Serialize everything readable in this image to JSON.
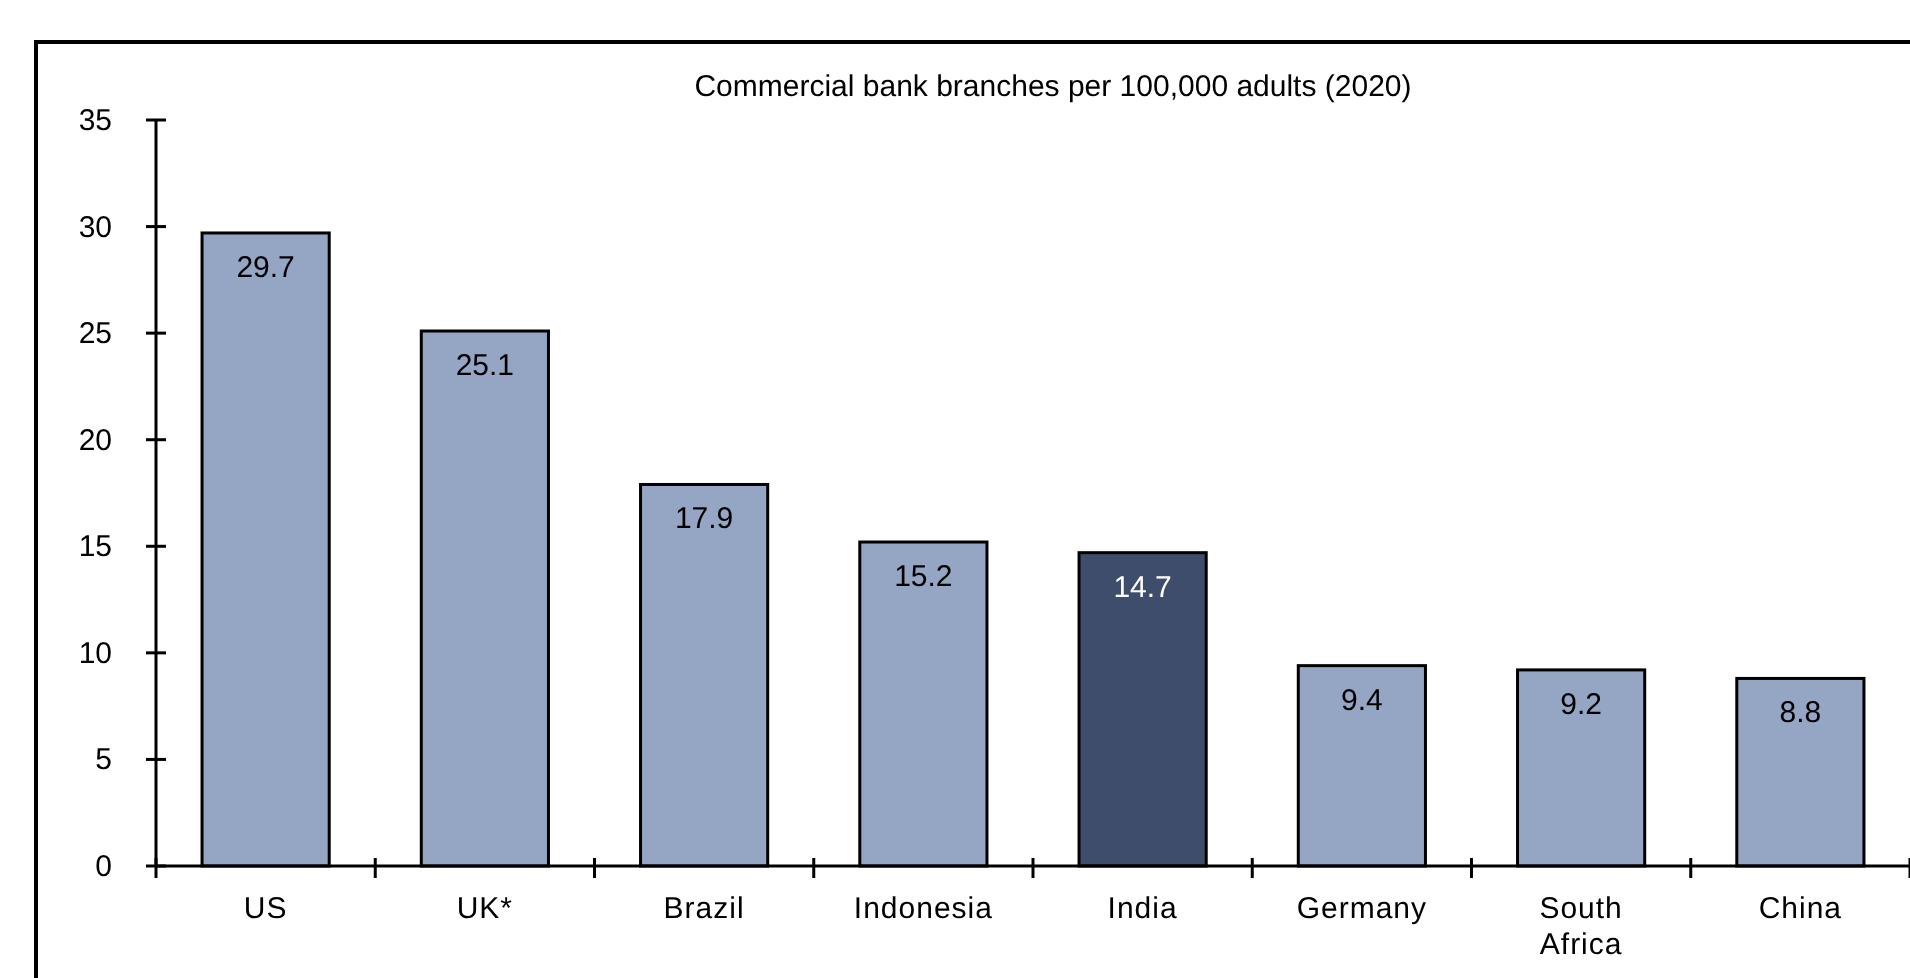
{
  "chart_data": {
    "type": "bar",
    "title": "Commercial  bank branches per 100,000 adults (2020)",
    "categories": [
      "US",
      "UK*",
      "Brazil",
      "Indonesia",
      "India",
      "Germany",
      "South Africa",
      "China"
    ],
    "values": [
      29.7,
      25.1,
      17.9,
      15.2,
      14.7,
      9.4,
      9.2,
      8.8
    ],
    "colors": [
      "#95a5c4",
      "#95a5c4",
      "#95a5c4",
      "#95a5c4",
      "#3e4d6b",
      "#95a5c4",
      "#95a5c4",
      "#95a5c4"
    ],
    "ylim": [
      0,
      35
    ],
    "yticks": [
      0,
      5,
      10,
      15,
      20,
      25,
      30,
      35
    ],
    "data_labels": true,
    "grid": false
  }
}
